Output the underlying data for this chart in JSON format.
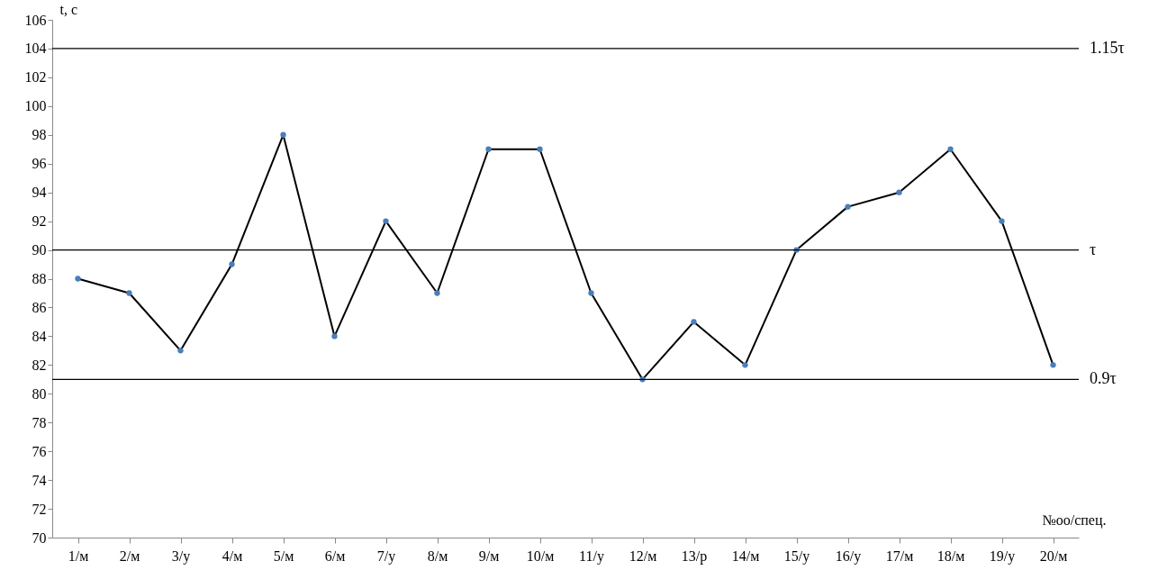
{
  "chart_data": {
    "type": "line",
    "ylabel": "t, с",
    "xlabel": "№оо/спец.",
    "categories": [
      "1/м",
      "2/м",
      "3/у",
      "4/м",
      "5/м",
      "6/м",
      "7/у",
      "8/м",
      "9/м",
      "10/м",
      "11/у",
      "12/м",
      "13/р",
      "14/м",
      "15/у",
      "16/у",
      "17/м",
      "18/м",
      "19/у",
      "20/м"
    ],
    "series": [
      {
        "color": "#000000",
        "values": [
          88,
          87,
          83,
          89,
          98,
          84,
          92,
          87,
          97,
          97,
          87,
          81,
          85,
          82,
          90,
          93,
          94,
          97,
          92,
          82
        ]
      }
    ],
    "ylim": [
      70,
      106
    ],
    "yticks": [
      70,
      72,
      74,
      76,
      78,
      80,
      82,
      84,
      86,
      88,
      90,
      92,
      94,
      96,
      98,
      100,
      102,
      104,
      106
    ],
    "ref_lines": [
      {
        "axis": "y",
        "value": 104,
        "label": "1.15τ"
      },
      {
        "axis": "y",
        "value": 90,
        "label": "τ"
      },
      {
        "axis": "y",
        "value": 81,
        "label": "0.9τ"
      }
    ],
    "grid": false,
    "marker": "circle",
    "line_style": "solid"
  }
}
